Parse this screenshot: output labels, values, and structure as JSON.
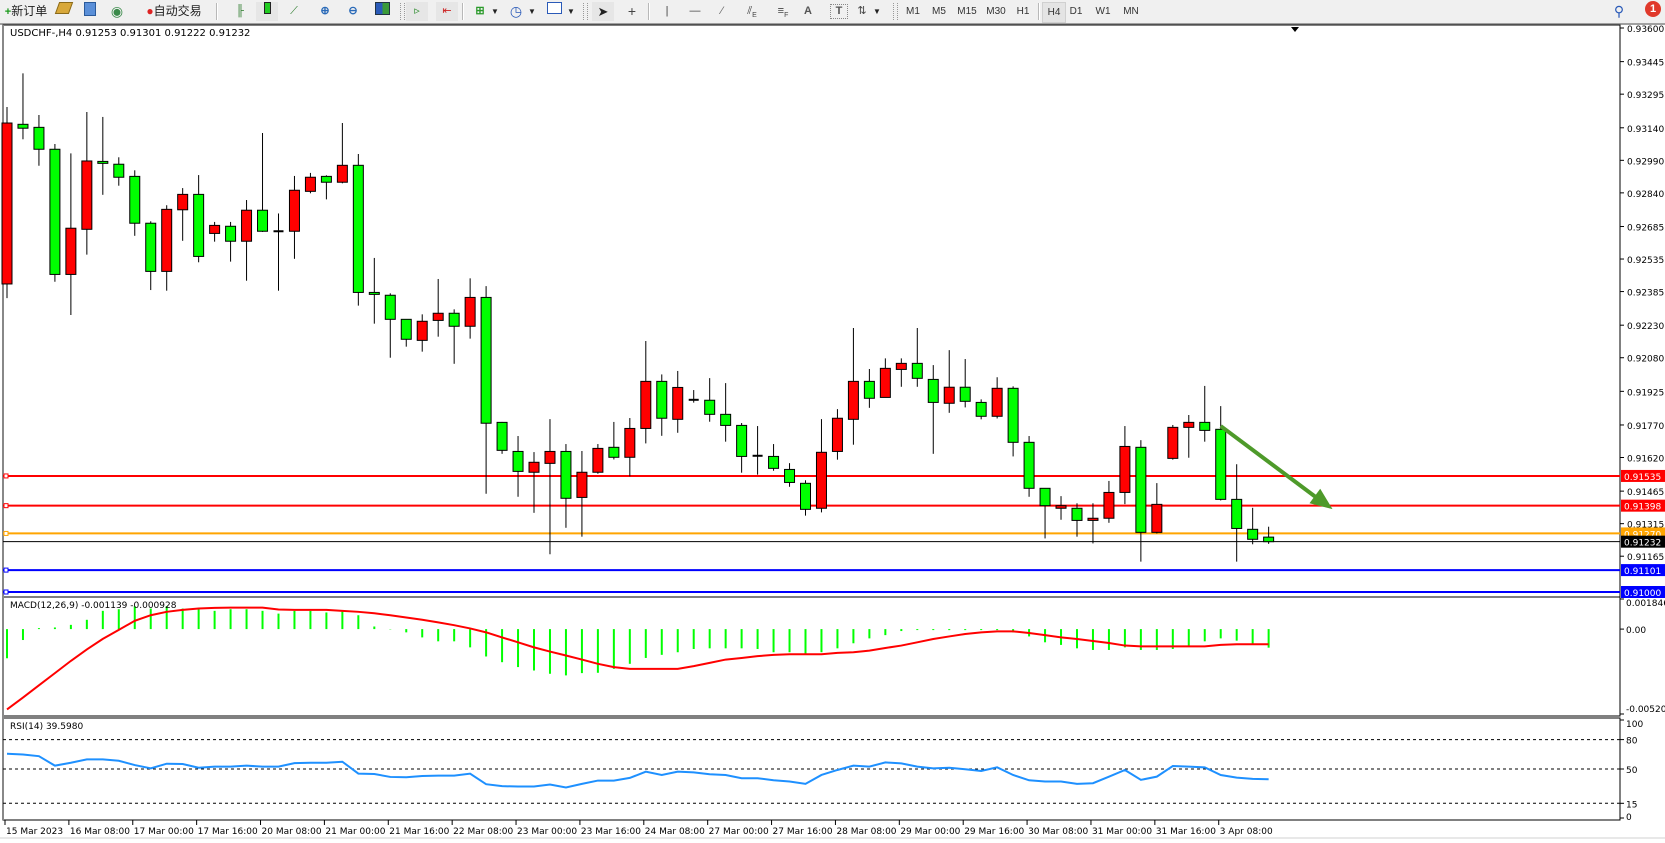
{
  "toolbar": {
    "new_order_label": "新订单",
    "auto_trading_label": "自动交易",
    "icons": [
      "plus-icon",
      "book-icon",
      "chart-sheet-icon",
      "signal-icon",
      "auto-trading-icon",
      "bar-chart-icon",
      "candlestick-icon",
      "line-chart-icon",
      "zoom-in-icon",
      "zoom-out-icon",
      "tile-windows-icon",
      "auto-scroll-icon",
      "chart-shift-icon",
      "new-chart-icon",
      "clock-icon",
      "template-icon",
      "cursor-icon",
      "crosshair-icon",
      "vertical-line-icon",
      "horizontal-line-icon",
      "trendline-icon",
      "fibo-channel-icon",
      "fibo-retracement-icon",
      "text-icon",
      "label-icon",
      "arrows-icon",
      "search-icon",
      "notification-icon"
    ],
    "text_tool": "A",
    "label_tool": "T",
    "timeframes": [
      "M1",
      "M5",
      "M15",
      "M30",
      "H1",
      "H4",
      "D1",
      "W1",
      "MN"
    ],
    "active_timeframe": "H4",
    "notification_count": "1"
  },
  "chart": {
    "legend": "USDCHF-,H4  0.91253 0.91301 0.91222 0.91232",
    "macd_label": "MACD(12,26,9) -0.001139 -0.000928",
    "rsi_label": "RSI(14) 39.5980"
  },
  "colors": {
    "bull": "#ff0000",
    "bear": "#00ff00",
    "signal": "#ff0000",
    "histogram": "#00ff00",
    "rsi": "#1e90ff",
    "arrow": "#4e9a2a"
  },
  "chart_data": {
    "type": "candlestick",
    "symbol": "USDCHF-",
    "timeframe": "H4",
    "ylim": [
      0.91,
      0.936
    ],
    "price_ticks": [
      "0.93600",
      "0.93445",
      "0.93295",
      "0.93140",
      "0.92990",
      "0.92840",
      "0.92685",
      "0.92535",
      "0.92385",
      "0.92230",
      "0.92080",
      "0.91925",
      "0.91770",
      "0.91620",
      "0.91465",
      "0.91315",
      "0.91165"
    ],
    "time_labels": [
      "15 Mar 2023",
      "16 Mar 08:00",
      "17 Mar 00:00",
      "17 Mar 16:00",
      "20 Mar 08:00",
      "21 Mar 00:00",
      "21 Mar 16:00",
      "22 Mar 08:00",
      "23 Mar 00:00",
      "23 Mar 16:00",
      "24 Mar 08:00",
      "27 Mar 00:00",
      "27 Mar 16:00",
      "28 Mar 08:00",
      "29 Mar 00:00",
      "29 Mar 16:00",
      "30 Mar 08:00",
      "31 Mar 00:00",
      "31 Mar 16:00",
      "3 Apr 08:00"
    ],
    "ohlc": [
      [
        0.9242,
        0.93236,
        0.92355,
        0.93162
      ],
      [
        0.93156,
        0.93391,
        0.93087,
        0.93138
      ],
      [
        0.93142,
        0.93199,
        0.92965,
        0.93041
      ],
      [
        0.93041,
        0.93065,
        0.9243,
        0.92464
      ],
      [
        0.92464,
        0.93022,
        0.92277,
        0.92677
      ],
      [
        0.92672,
        0.93213,
        0.92555,
        0.92987
      ],
      [
        0.92985,
        0.9319,
        0.92831,
        0.92976
      ],
      [
        0.92972,
        0.93004,
        0.92873,
        0.92912
      ],
      [
        0.92916,
        0.92944,
        0.92642,
        0.927
      ],
      [
        0.927,
        0.92709,
        0.92392,
        0.92478
      ],
      [
        0.92478,
        0.92783,
        0.92389,
        0.92764
      ],
      [
        0.92762,
        0.92862,
        0.92619,
        0.92833
      ],
      [
        0.92833,
        0.92922,
        0.9252,
        0.92547
      ],
      [
        0.92653,
        0.92706,
        0.92615,
        0.9269
      ],
      [
        0.92686,
        0.92706,
        0.92523,
        0.92617
      ],
      [
        0.92617,
        0.92807,
        0.92435,
        0.9276
      ],
      [
        0.9276,
        0.93116,
        0.9266,
        0.92663
      ],
      [
        0.92663,
        0.92745,
        0.92389,
        0.92663
      ],
      [
        0.92663,
        0.92918,
        0.92536,
        0.92852
      ],
      [
        0.92847,
        0.92932,
        0.92838,
        0.92912
      ],
      [
        0.92916,
        0.92921,
        0.9281,
        0.92889
      ],
      [
        0.92889,
        0.93162,
        0.92884,
        0.92967
      ],
      [
        0.92967,
        0.93019,
        0.9232,
        0.92381
      ],
      [
        0.92381,
        0.9254,
        0.92237,
        0.92372
      ],
      [
        0.92368,
        0.92377,
        0.9208,
        0.92257
      ],
      [
        0.92257,
        0.92257,
        0.92131,
        0.92165
      ],
      [
        0.9216,
        0.9228,
        0.92108,
        0.92248
      ],
      [
        0.92252,
        0.92443,
        0.92177,
        0.92285
      ],
      [
        0.92285,
        0.92303,
        0.92052,
        0.92225
      ],
      [
        0.92225,
        0.92446,
        0.92168,
        0.92358
      ],
      [
        0.92358,
        0.9241,
        0.91453,
        0.91778
      ],
      [
        0.91782,
        0.91784,
        0.91637,
        0.91653
      ],
      [
        0.91648,
        0.91719,
        0.91439,
        0.91556
      ],
      [
        0.91552,
        0.91645,
        0.91365,
        0.91598
      ],
      [
        0.91593,
        0.91797,
        0.91174,
        0.91648
      ],
      [
        0.91648,
        0.91682,
        0.91296,
        0.91432
      ],
      [
        0.91436,
        0.9165,
        0.91255,
        0.91552
      ],
      [
        0.91552,
        0.91682,
        0.91545,
        0.91662
      ],
      [
        0.91667,
        0.91784,
        0.91611,
        0.91621
      ],
      [
        0.91621,
        0.91802,
        0.91533,
        0.91754
      ],
      [
        0.91754,
        0.92157,
        0.91685,
        0.91971
      ],
      [
        0.91971,
        0.92003,
        0.9172,
        0.91801
      ],
      [
        0.91796,
        0.92019,
        0.91734,
        0.91943
      ],
      [
        0.91886,
        0.91931,
        0.91873,
        0.91886
      ],
      [
        0.91884,
        0.91986,
        0.91785,
        0.91819
      ],
      [
        0.91819,
        0.91963,
        0.91693,
        0.91768
      ],
      [
        0.91768,
        0.91779,
        0.9155,
        0.91625
      ],
      [
        0.91628,
        0.91765,
        0.91541,
        0.91628
      ],
      [
        0.91625,
        0.91682,
        0.91559,
        0.9157
      ],
      [
        0.91565,
        0.91594,
        0.91485,
        0.91505
      ],
      [
        0.91501,
        0.91515,
        0.91352,
        0.91381
      ],
      [
        0.91386,
        0.91797,
        0.91367,
        0.91644
      ],
      [
        0.91648,
        0.91843,
        0.9161,
        0.91801
      ],
      [
        0.91796,
        0.92217,
        0.91679,
        0.91971
      ],
      [
        0.91971,
        0.92028,
        0.91849,
        0.91893
      ],
      [
        0.91897,
        0.92077,
        0.91897,
        0.92031
      ],
      [
        0.92026,
        0.92077,
        0.91946,
        0.92054
      ],
      [
        0.92054,
        0.92217,
        0.91946,
        0.91985
      ],
      [
        0.9198,
        0.92046,
        0.91637,
        0.91874
      ],
      [
        0.9187,
        0.92115,
        0.91826,
        0.91944
      ],
      [
        0.91944,
        0.92074,
        0.91851,
        0.91879
      ],
      [
        0.91874,
        0.91888,
        0.91796,
        0.9181
      ],
      [
        0.9181,
        0.9199,
        0.918,
        0.91939
      ],
      [
        0.91939,
        0.91948,
        0.91625,
        0.9169
      ],
      [
        0.9169,
        0.91719,
        0.91439,
        0.91478
      ],
      [
        0.91478,
        0.91478,
        0.91247,
        0.91398
      ],
      [
        0.91386,
        0.91442,
        0.91333,
        0.91398
      ],
      [
        0.91386,
        0.91409,
        0.91255,
        0.9133
      ],
      [
        0.9133,
        0.91409,
        0.91224,
        0.9134
      ],
      [
        0.9134,
        0.91512,
        0.91319,
        0.91459
      ],
      [
        0.91459,
        0.91765,
        0.91405,
        0.91671
      ],
      [
        0.91667,
        0.917,
        0.9114,
        0.91275
      ],
      [
        0.91275,
        0.91502,
        0.9127,
        0.91404
      ],
      [
        0.91616,
        0.9177,
        0.9161,
        0.91759
      ],
      [
        0.91759,
        0.91816,
        0.91619,
        0.91782
      ],
      [
        0.91782,
        0.9195,
        0.91693,
        0.91745
      ],
      [
        0.9175,
        0.91857,
        0.91422,
        0.91427
      ],
      [
        0.91427,
        0.91589,
        0.9114,
        0.91293
      ],
      [
        0.91289,
        0.91388,
        0.9122,
        0.91243
      ],
      [
        0.91253,
        0.91301,
        0.91222,
        0.91232
      ]
    ],
    "horizontal_lines": [
      {
        "price": 0.91535,
        "label": "0.91535",
        "color": "#ff0000"
      },
      {
        "price": 0.91398,
        "label": "0.91398",
        "color": "#ff0000"
      },
      {
        "price": 0.9127,
        "label": "0.91270",
        "color": "#ffa500"
      },
      {
        "price": 0.91232,
        "label": "0.91232",
        "color": "#000000"
      },
      {
        "price": 0.91101,
        "label": "0.91101",
        "color": "#0000ff"
      },
      {
        "price": 0.91,
        "label": "0.91000",
        "color": "#0000ff"
      }
    ],
    "arrow_annotation": {
      "from": {
        "bar": 77,
        "price": 0.91765
      },
      "to": {
        "bar": 84,
        "price": 0.91382
      },
      "direction": "down"
    },
    "macd": {
      "params": "12,26,9",
      "ylim": [
        -0.005208,
        0.001846
      ],
      "ticks": [
        "0.001846",
        "0.00",
        "-0.005208"
      ],
      "histogram": [
        -0.00179,
        -0.00067,
        6e-05,
        0.0001,
        0.00026,
        0.00057,
        0.00112,
        0.00122,
        0.0014,
        0.00126,
        0.0014,
        0.00126,
        0.00122,
        0.00112,
        0.00122,
        0.00122,
        0.00112,
        0.00095,
        0.00112,
        0.00112,
        0.00102,
        0.00112,
        0.00085,
        0.00016,
        -2e-05,
        -0.0002,
        -0.00051,
        -0.00075,
        -0.00075,
        -0.00112,
        -0.00168,
        -0.00203,
        -0.00233,
        -0.00254,
        -0.00274,
        -0.00284,
        -0.0027,
        -0.00268,
        -0.00244,
        -0.00213,
        -0.00177,
        -0.00158,
        -0.00142,
        -0.00122,
        -0.00118,
        -0.00118,
        -0.00118,
        -0.00122,
        -0.00142,
        -0.00142,
        -0.00152,
        -0.00142,
        -0.00118,
        -0.00087,
        -0.00057,
        -0.00037,
        -0.00012,
        -6e-05,
        0.0,
        0.0,
        0.0,
        -6e-05,
        0.0,
        -0.0002,
        -0.00045,
        -0.00081,
        -0.00097,
        -0.00118,
        -0.00128,
        -0.00128,
        -0.00112,
        -0.00128,
        -0.00128,
        -0.00122,
        -0.00101,
        -0.00075,
        -0.00057,
        -0.00071,
        -0.00091,
        -0.00114
      ],
      "signal": [
        -0.00493,
        -0.0042,
        -0.00345,
        -0.0027,
        -0.00195,
        -0.00125,
        -0.0006,
        -5e-05,
        0.00051,
        0.00085,
        0.00106,
        0.00118,
        0.00126,
        0.0013,
        0.00132,
        0.00132,
        0.00132,
        0.0012,
        0.00118,
        0.00118,
        0.00118,
        0.00112,
        0.00106,
        0.00097,
        0.00085,
        0.00071,
        0.00057,
        0.00041,
        0.00024,
        4e-05,
        -0.0002,
        -0.00051,
        -0.00081,
        -0.00112,
        -0.00138,
        -0.00162,
        -0.00187,
        -0.00213,
        -0.00233,
        -0.00244,
        -0.00244,
        -0.00244,
        -0.00244,
        -0.00227,
        -0.00207,
        -0.00187,
        -0.00177,
        -0.00166,
        -0.00158,
        -0.00154,
        -0.00154,
        -0.00154,
        -0.00146,
        -0.00142,
        -0.00132,
        -0.00116,
        -0.00101,
        -0.00081,
        -0.00061,
        -0.00045,
        -0.0003,
        -0.0002,
        -0.00014,
        -0.00014,
        -0.00024,
        -0.00037,
        -0.00051,
        -0.00061,
        -0.00073,
        -0.00085,
        -0.00101,
        -0.00106,
        -0.00106,
        -0.00106,
        -0.00106,
        -0.00106,
        -0.00097,
        -0.00093,
        -0.00093,
        -0.00093
      ]
    },
    "rsi": {
      "period": 14,
      "ylim": [
        0,
        100
      ],
      "levels": [
        80,
        50,
        15
      ],
      "ticks": [
        "100",
        "80",
        "50",
        "15",
        "0"
      ],
      "values": [
        65.5,
        64.8,
        63.1,
        53.4,
        56.4,
        59.8,
        59.8,
        58.4,
        54.0,
        50.7,
        55.4,
        55.1,
        51.3,
        52.4,
        52.4,
        53.4,
        52.4,
        52.4,
        56.0,
        56.4,
        56.4,
        57.4,
        45.3,
        44.9,
        41.9,
        41.6,
        42.9,
        43.3,
        43.3,
        45.3,
        34.5,
        32.5,
        32.1,
        32.1,
        34.2,
        31.1,
        34.8,
        38.2,
        38.2,
        40.9,
        47.3,
        43.9,
        47.3,
        46.6,
        44.6,
        43.9,
        40.6,
        40.6,
        38.5,
        37.2,
        34.8,
        43.9,
        49.0,
        53.4,
        52.4,
        56.7,
        55.7,
        52.4,
        50.7,
        51.3,
        49.7,
        48.0,
        51.7,
        43.9,
        38.5,
        37.2,
        37.2,
        34.8,
        35.5,
        42.2,
        49.0,
        38.9,
        42.2,
        53.0,
        52.4,
        51.7,
        43.9,
        41.2,
        39.9,
        39.6
      ]
    }
  }
}
